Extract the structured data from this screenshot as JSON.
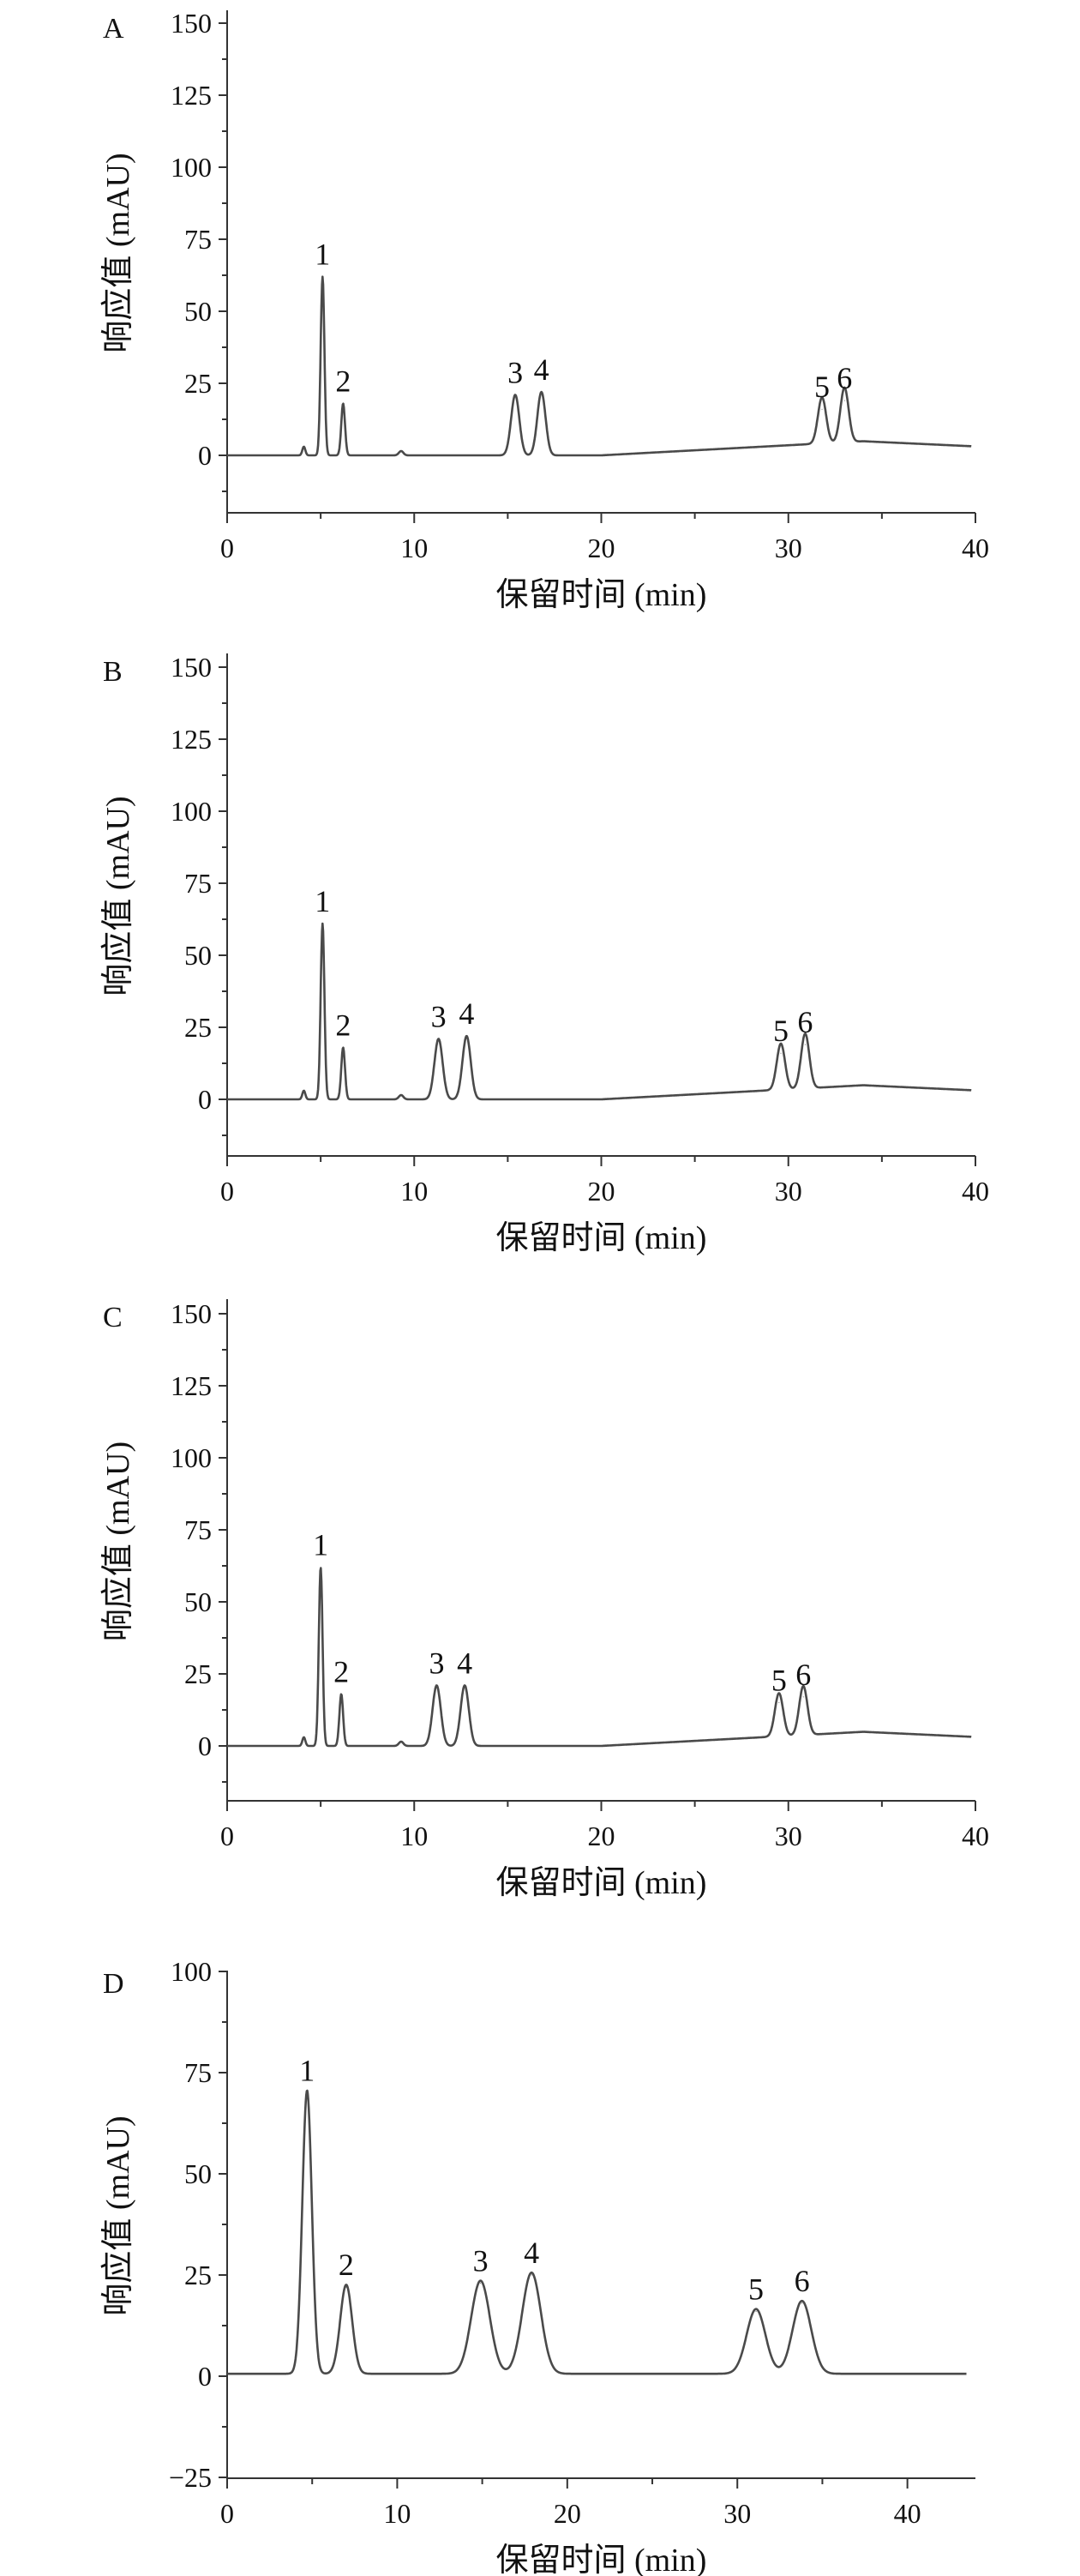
{
  "chart_data": [
    {
      "type": "line",
      "panel": "A",
      "xlabel": "保留时间 (min)",
      "ylabel": "响应值 (mAU)",
      "xlim": [
        0,
        40
      ],
      "ylim": [
        -20,
        155
      ],
      "xticks": [
        0,
        10,
        20,
        30,
        40
      ],
      "yticks": [
        0,
        25,
        50,
        75,
        100,
        125,
        150
      ],
      "peaks": [
        {
          "label": "1",
          "x": 5.1,
          "y": 62
        },
        {
          "label": "2",
          "x": 6.2,
          "y": 18
        },
        {
          "label": "3",
          "x": 15.4,
          "y": 21
        },
        {
          "label": "4",
          "x": 16.8,
          "y": 22
        },
        {
          "label": "5",
          "x": 31.8,
          "y": 16
        },
        {
          "label": "6",
          "x": 33.0,
          "y": 19
        }
      ]
    },
    {
      "type": "line",
      "panel": "B",
      "xlabel": "保留时间 (min)",
      "ylabel": "响应值 (mAU)",
      "xlim": [
        0,
        40
      ],
      "ylim": [
        -20,
        155
      ],
      "xticks": [
        0,
        10,
        20,
        30,
        40
      ],
      "yticks": [
        0,
        25,
        50,
        75,
        100,
        125,
        150
      ],
      "peaks": [
        {
          "label": "1",
          "x": 5.1,
          "y": 61
        },
        {
          "label": "2",
          "x": 6.2,
          "y": 18
        },
        {
          "label": "3",
          "x": 11.3,
          "y": 21
        },
        {
          "label": "4",
          "x": 12.8,
          "y": 22
        },
        {
          "label": "5",
          "x": 29.6,
          "y": 16
        },
        {
          "label": "6",
          "x": 30.9,
          "y": 19
        }
      ]
    },
    {
      "type": "line",
      "panel": "C",
      "xlabel": "保留时间 (min)",
      "ylabel": "响应值 (mAU)",
      "xlim": [
        0,
        40
      ],
      "ylim": [
        -20,
        155
      ],
      "xticks": [
        0,
        10,
        20,
        30,
        40
      ],
      "yticks": [
        0,
        25,
        50,
        75,
        100,
        125,
        150
      ],
      "peaks": [
        {
          "label": "1",
          "x": 5.0,
          "y": 62
        },
        {
          "label": "2",
          "x": 6.1,
          "y": 18
        },
        {
          "label": "3",
          "x": 11.2,
          "y": 21
        },
        {
          "label": "4",
          "x": 12.7,
          "y": 21
        },
        {
          "label": "5",
          "x": 29.5,
          "y": 15
        },
        {
          "label": "6",
          "x": 30.8,
          "y": 17
        }
      ]
    },
    {
      "type": "line",
      "panel": "D",
      "xlabel": "保留时间 (min)",
      "ylabel": "响应值 (mAU)",
      "xlim": [
        0,
        44
      ],
      "ylim": [
        -25,
        100
      ],
      "xticks": [
        0,
        10,
        20,
        30,
        40
      ],
      "yticks": [
        -25,
        0,
        25,
        50,
        75,
        100
      ],
      "peaks": [
        {
          "label": "1",
          "x": 4.7,
          "y": 70
        },
        {
          "label": "2",
          "x": 7.0,
          "y": 22
        },
        {
          "label": "3",
          "x": 14.9,
          "y": 23
        },
        {
          "label": "4",
          "x": 17.9,
          "y": 25
        },
        {
          "label": "5",
          "x": 31.1,
          "y": 16
        },
        {
          "label": "6",
          "x": 33.8,
          "y": 18
        }
      ]
    }
  ]
}
